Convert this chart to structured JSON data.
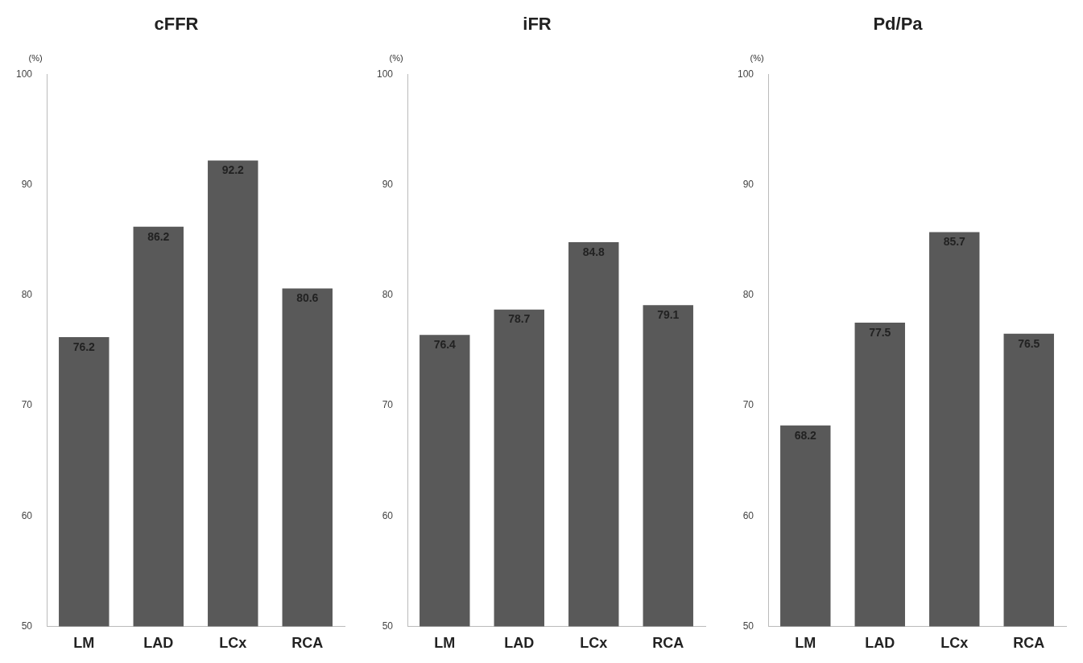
{
  "chart_data": [
    {
      "type": "bar",
      "title": "cFFR",
      "ylabel": "(%)",
      "categories": [
        "LM",
        "LAD",
        "LCx",
        "RCA"
      ],
      "values": [
        76.2,
        86.2,
        92.2,
        80.6
      ],
      "color": "#595959",
      "ylim": [
        50,
        100
      ],
      "yticks": [
        50,
        60,
        70,
        80,
        90,
        100
      ],
      "grid": false,
      "legend": false,
      "data_labels": true
    },
    {
      "type": "bar",
      "title": "iFR",
      "ylabel": "(%)",
      "categories": [
        "LM",
        "LAD",
        "LCx",
        "RCA"
      ],
      "values": [
        76.4,
        78.7,
        84.8,
        79.1
      ],
      "color": "#595959",
      "ylim": [
        50,
        100
      ],
      "yticks": [
        50,
        60,
        70,
        80,
        90,
        100
      ],
      "grid": false,
      "legend": false,
      "data_labels": true
    },
    {
      "type": "bar",
      "title": "Pd/Pa",
      "ylabel": "(%)",
      "categories": [
        "LM",
        "LAD",
        "LCx",
        "RCA"
      ],
      "values": [
        68.2,
        77.5,
        85.7,
        76.5
      ],
      "color": "#595959",
      "ylim": [
        50,
        100
      ],
      "yticks": [
        50,
        60,
        70,
        80,
        90,
        100
      ],
      "grid": false,
      "legend": false,
      "data_labels": true
    }
  ]
}
